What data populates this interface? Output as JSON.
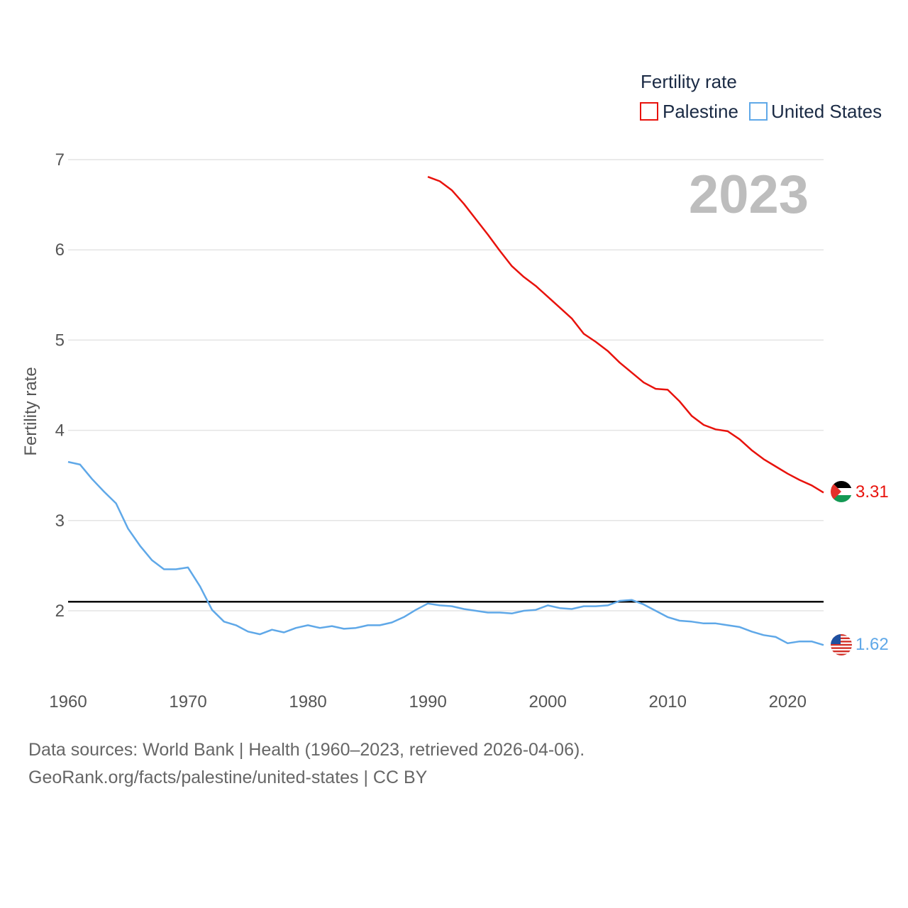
{
  "chart_data": {
    "type": "line",
    "title": "",
    "year_overlay": "2023",
    "xlabel": "",
    "ylabel": "Fertility rate",
    "xlim": [
      1960,
      2023
    ],
    "ylim": [
      1.3,
      7.1
    ],
    "x_ticks": [
      1960,
      1970,
      1980,
      1990,
      2000,
      2010,
      2020
    ],
    "x_tick_labels": [
      "1960",
      "1970",
      "1980",
      "1990",
      "2000",
      "2010",
      "2020"
    ],
    "y_ticks": [
      2,
      3,
      4,
      5,
      6,
      7
    ],
    "y_tick_labels": [
      "2",
      "3",
      "4",
      "5",
      "6",
      "7"
    ],
    "grid": true,
    "legend": {
      "title": "Fertility rate",
      "placement": "top-right",
      "entries": [
        "Palestine",
        "United States"
      ]
    },
    "reference_line": {
      "y": 2.1,
      "color": "#000000"
    },
    "series": [
      {
        "name": "Palestine",
        "color": "#e8120c",
        "end_label": "3.31",
        "flag_icon": "palestine-flag-icon",
        "x": [
          1990,
          1991,
          1992,
          1993,
          1994,
          1995,
          1996,
          1997,
          1998,
          1999,
          2000,
          2001,
          2002,
          2003,
          2004,
          2005,
          2006,
          2007,
          2008,
          2009,
          2010,
          2011,
          2012,
          2013,
          2014,
          2015,
          2016,
          2017,
          2018,
          2019,
          2020,
          2021,
          2022,
          2023
        ],
        "values": [
          6.81,
          6.76,
          6.66,
          6.51,
          6.34,
          6.17,
          5.99,
          5.82,
          5.7,
          5.6,
          5.48,
          5.36,
          5.24,
          5.07,
          4.98,
          4.88,
          4.75,
          4.64,
          4.53,
          4.46,
          4.45,
          4.32,
          4.16,
          4.06,
          4.01,
          3.99,
          3.9,
          3.78,
          3.68,
          3.6,
          3.52,
          3.45,
          3.39,
          3.31
        ]
      },
      {
        "name": "United States",
        "color": "#5fa8e8",
        "end_label": "1.62",
        "flag_icon": "united-states-flag-icon",
        "x": [
          1960,
          1961,
          1962,
          1963,
          1964,
          1965,
          1966,
          1967,
          1968,
          1969,
          1970,
          1971,
          1972,
          1973,
          1974,
          1975,
          1976,
          1977,
          1978,
          1979,
          1980,
          1981,
          1982,
          1983,
          1984,
          1985,
          1986,
          1987,
          1988,
          1989,
          1990,
          1991,
          1992,
          1993,
          1994,
          1995,
          1996,
          1997,
          1998,
          1999,
          2000,
          2001,
          2002,
          2003,
          2004,
          2005,
          2006,
          2007,
          2008,
          2009,
          2010,
          2011,
          2012,
          2013,
          2014,
          2015,
          2016,
          2017,
          2018,
          2019,
          2020,
          2021,
          2022,
          2023
        ],
        "values": [
          3.65,
          3.62,
          3.46,
          3.32,
          3.19,
          2.91,
          2.72,
          2.56,
          2.46,
          2.46,
          2.48,
          2.27,
          2.01,
          1.88,
          1.84,
          1.77,
          1.74,
          1.79,
          1.76,
          1.81,
          1.84,
          1.81,
          1.83,
          1.8,
          1.81,
          1.84,
          1.84,
          1.87,
          1.93,
          2.01,
          2.08,
          2.06,
          2.05,
          2.02,
          2.0,
          1.98,
          1.98,
          1.97,
          2.0,
          2.01,
          2.06,
          2.03,
          2.02,
          2.05,
          2.05,
          2.06,
          2.11,
          2.12,
          2.07,
          2.0,
          1.93,
          1.89,
          1.88,
          1.86,
          1.86,
          1.84,
          1.82,
          1.77,
          1.73,
          1.71,
          1.64,
          1.66,
          1.66,
          1.62
        ]
      }
    ]
  },
  "footer": {
    "source": "Data sources: World Bank | Health (1960–2023, retrieved 2026-04-06).",
    "site": "GeoRank.org/facts/palestine/united-states | CC BY"
  }
}
